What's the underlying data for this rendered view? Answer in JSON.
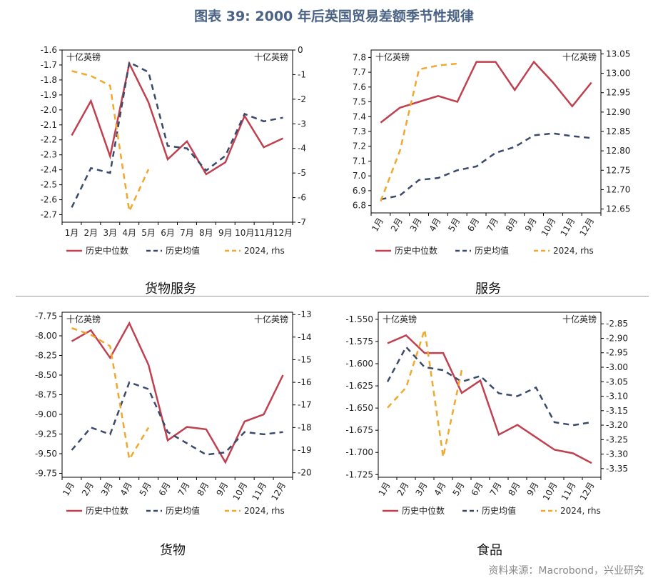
{
  "title": "图表 39: 2000 年后英国贸易差额季节性规律",
  "source": "资料来源：Macrobond，兴业研究",
  "colors": {
    "median": "#c0404f",
    "mean": "#3a4a6a",
    "y2024": "#f0a830",
    "title": "#4a6385"
  },
  "chart_data": [
    {
      "type": "line",
      "title": "货物服务",
      "left_unit": "十亿英镑",
      "right_unit": "十亿英镑",
      "categories": [
        "1月",
        "2月",
        "3月",
        "4月",
        "5月",
        "6月",
        "7月",
        "8月",
        "9月",
        "10月",
        "11月",
        "12月"
      ],
      "left_ylim": [
        -2.75,
        -1.6
      ],
      "left_ticks": [
        "-1.6",
        "-1.7",
        "-1.8",
        "-1.9",
        "-2.0",
        "-2.1",
        "-2.2",
        "-2.3",
        "-2.4",
        "-2.5",
        "-2.6",
        "-2.7"
      ],
      "right_ylim": [
        -7,
        0
      ],
      "right_ticks": [
        "0",
        "-1",
        "-2",
        "-3",
        "-4",
        "-5",
        "-6",
        "-7"
      ],
      "series": [
        {
          "name": "历史中位数",
          "axis": "left",
          "style": "solid",
          "values": [
            -2.17,
            -1.94,
            -2.31,
            -1.69,
            -1.95,
            -2.33,
            -2.21,
            -2.43,
            -2.35,
            -2.04,
            -2.25,
            -2.19
          ]
        },
        {
          "name": "历史均值",
          "axis": "right",
          "style": "dashed",
          "values": [
            -6.4,
            -4.8,
            -5.0,
            -0.5,
            -0.9,
            -3.9,
            -4.0,
            -4.9,
            -4.3,
            -2.6,
            -2.9,
            -2.75
          ]
        },
        {
          "name": "2024, rhs",
          "axis": "right",
          "style": "dashed",
          "values": [
            -0.85,
            -1.05,
            -1.45,
            -6.55,
            -4.85,
            null,
            null,
            null,
            null,
            null,
            null,
            null
          ]
        }
      ]
    },
    {
      "type": "line",
      "title": "服务",
      "left_unit": "十亿英镑",
      "right_unit": "十亿英镑",
      "categories": [
        "1月",
        "2月",
        "3月",
        "4月",
        "5月",
        "6月",
        "7月",
        "8月",
        "9月",
        "10月",
        "11月",
        "12月"
      ],
      "left_ylim": [
        6.75,
        7.85
      ],
      "left_ticks": [
        "7.8",
        "7.7",
        "7.6",
        "7.5",
        "7.4",
        "7.3",
        "7.2",
        "7.1",
        "7.0",
        "6.9",
        "6.8"
      ],
      "right_ylim": [
        12.64,
        13.06
      ],
      "right_ticks": [
        "13.05",
        "13.00",
        "12.95",
        "12.90",
        "12.85",
        "12.80",
        "12.75",
        "12.70",
        "12.65"
      ],
      "series": [
        {
          "name": "历史中位数",
          "axis": "left",
          "style": "solid",
          "values": [
            7.36,
            7.46,
            7.5,
            7.54,
            7.5,
            7.77,
            7.77,
            7.58,
            7.77,
            7.63,
            7.47,
            7.63
          ]
        },
        {
          "name": "历史均值",
          "axis": "right",
          "style": "dashed",
          "values": [
            12.675,
            12.685,
            12.725,
            12.73,
            12.75,
            12.76,
            12.795,
            12.81,
            12.84,
            12.845,
            12.838,
            12.833
          ]
        },
        {
          "name": "2024, rhs",
          "axis": "right",
          "style": "dashed",
          "values": [
            12.67,
            12.8,
            13.01,
            13.02,
            13.025,
            null,
            null,
            null,
            null,
            null,
            null,
            null
          ]
        }
      ]
    },
    {
      "type": "line",
      "title": "货物",
      "left_unit": "十亿英镑",
      "right_unit": "十亿英镑",
      "categories": [
        "1月",
        "2月",
        "3月",
        "4月",
        "5月",
        "6月",
        "7月",
        "8月",
        "9月",
        "10月",
        "11月",
        "12月"
      ],
      "left_ylim": [
        -9.8,
        -7.7
      ],
      "left_ticks": [
        "-7.75",
        "-8.00",
        "-8.25",
        "-8.50",
        "-8.75",
        "-9.00",
        "-9.25",
        "-9.50",
        "-9.75"
      ],
      "right_ylim": [
        -20.2,
        -12.9
      ],
      "right_ticks": [
        "-13",
        "-14",
        "-15",
        "-16",
        "-17",
        "-18",
        "-19",
        "-20"
      ],
      "series": [
        {
          "name": "历史中位数",
          "axis": "left",
          "style": "solid",
          "values": [
            -8.07,
            -7.93,
            -8.28,
            -7.84,
            -8.37,
            -9.33,
            -9.16,
            -9.19,
            -9.61,
            -9.09,
            -9.0,
            -8.5
          ]
        },
        {
          "name": "历史均值",
          "axis": "right",
          "style": "dashed",
          "values": [
            -19.0,
            -18.0,
            -18.3,
            -16.0,
            -16.3,
            -18.2,
            -18.7,
            -19.2,
            -19.1,
            -18.2,
            -18.3,
            -18.2
          ]
        },
        {
          "name": "2024, rhs",
          "axis": "right",
          "style": "dashed",
          "values": [
            -13.6,
            -13.9,
            -14.4,
            -19.4,
            -18.0,
            null,
            null,
            null,
            null,
            null,
            null,
            null
          ]
        }
      ]
    },
    {
      "type": "line",
      "title": "食品",
      "left_unit": "十亿英镑",
      "right_unit": "十亿英镑",
      "categories": [
        "1月",
        "2月",
        "3月",
        "4月",
        "5月",
        "6月",
        "7月",
        "8月",
        "9月",
        "10月",
        "11月",
        "12月"
      ],
      "left_ylim": [
        -1.728,
        -1.542
      ],
      "left_ticks": [
        "-1.550",
        "-1.575",
        "-1.600",
        "-1.625",
        "-1.650",
        "-1.675",
        "-1.700",
        "-1.725"
      ],
      "right_ylim": [
        -3.38,
        -2.81
      ],
      "right_ticks": [
        "-2.85",
        "-2.90",
        "-2.95",
        "-3.00",
        "-3.05",
        "-3.10",
        "-3.15",
        "-3.20",
        "-3.25",
        "-3.30",
        "-3.35"
      ],
      "series": [
        {
          "name": "历史中位数",
          "axis": "left",
          "style": "solid",
          "values": [
            -1.577,
            -1.568,
            -1.588,
            -1.588,
            -1.633,
            -1.619,
            -1.68,
            -1.669,
            -1.683,
            -1.697,
            -1.701,
            -1.712
          ]
        },
        {
          "name": "历史均值",
          "axis": "right",
          "style": "dashed",
          "values": [
            -3.05,
            -2.93,
            -3.0,
            -3.01,
            -3.05,
            -3.03,
            -3.09,
            -3.1,
            -3.07,
            -3.19,
            -3.2,
            -3.19
          ]
        },
        {
          "name": "2024, rhs",
          "axis": "right",
          "style": "dashed",
          "values": [
            -3.14,
            -3.07,
            -2.87,
            -3.31,
            -3.01,
            null,
            null,
            null,
            null,
            null,
            null,
            null
          ]
        }
      ]
    }
  ]
}
